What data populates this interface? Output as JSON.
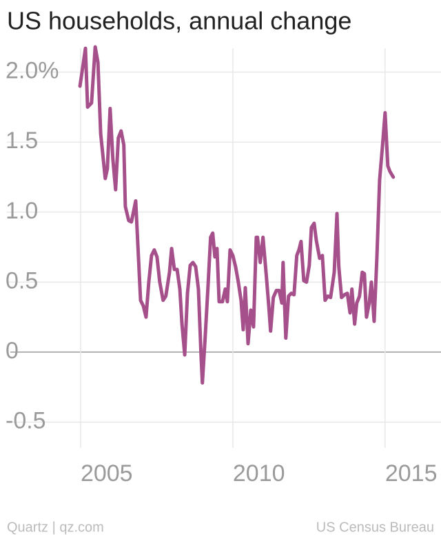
{
  "chart_data": {
    "type": "line",
    "title": "US households, annual change",
    "source": "US Census Bureau",
    "credit": "Quartz | qz.com",
    "xlim": [
      2002.58,
      2016.61
    ],
    "xticks": [
      2005,
      2010,
      2015
    ],
    "ylim": [
      -0.68,
      2.22
    ],
    "yticks": [
      {
        "value": 2.0,
        "label": "2.0%"
      },
      1.5,
      {
        "value": 1.0,
        "label": "1.0"
      },
      0.5,
      0,
      -0.5
    ],
    "grid": true,
    "series": [
      {
        "name": "US households, annual change",
        "color": "#a5508a",
        "x": [
          2004.98,
          2005.16,
          2005.23,
          2005.36,
          2005.48,
          2005.57,
          2005.66,
          2005.81,
          2005.88,
          2005.97,
          2006.06,
          2006.15,
          2006.24,
          2006.33,
          2006.42,
          2006.47,
          2006.58,
          2006.67,
          2006.81,
          2006.97,
          2007.06,
          2007.15,
          2007.24,
          2007.33,
          2007.42,
          2007.51,
          2007.6,
          2007.71,
          2007.8,
          2007.92,
          2007.99,
          2008.08,
          2008.17,
          2008.26,
          2008.33,
          2008.42,
          2008.51,
          2008.6,
          2008.69,
          2008.78,
          2008.87,
          2008.96,
          2009.0,
          2009.09,
          2009.18,
          2009.27,
          2009.34,
          2009.41,
          2009.48,
          2009.55,
          2009.66,
          2009.75,
          2009.82,
          2009.91,
          2010.0,
          2010.09,
          2010.18,
          2010.27,
          2010.34,
          2010.41,
          2010.5,
          2010.59,
          2010.68,
          2010.77,
          2010.81,
          2010.9,
          2010.99,
          2011.09,
          2011.18,
          2011.24,
          2011.33,
          2011.43,
          2011.52,
          2011.61,
          2011.65,
          2011.74,
          2011.83,
          2011.92,
          2012.01,
          2012.1,
          2012.17,
          2012.24,
          2012.33,
          2012.42,
          2012.51,
          2012.58,
          2012.67,
          2012.74,
          2012.85,
          2012.94,
          2013.03,
          2013.12,
          2013.21,
          2013.33,
          2013.42,
          2013.48,
          2013.57,
          2013.67,
          2013.76,
          2013.85,
          2013.91,
          2014.0,
          2014.07,
          2014.16,
          2014.25,
          2014.32,
          2014.39,
          2014.48,
          2014.55,
          2014.64,
          2014.73,
          2014.82,
          2014.91,
          2015.0,
          2015.09,
          2015.16,
          2015.27
        ],
        "values": [
          1.9,
          2.17,
          1.75,
          1.78,
          2.18,
          2.07,
          1.56,
          1.24,
          1.31,
          1.74,
          1.38,
          1.16,
          1.53,
          1.58,
          1.48,
          1.04,
          0.94,
          0.93,
          1.08,
          0.37,
          0.33,
          0.25,
          0.5,
          0.69,
          0.73,
          0.68,
          0.5,
          0.37,
          0.4,
          0.57,
          0.74,
          0.59,
          0.59,
          0.45,
          0.2,
          -0.02,
          0.42,
          0.62,
          0.64,
          0.61,
          0.45,
          -0.04,
          -0.22,
          0.1,
          0.45,
          0.82,
          0.85,
          0.68,
          0.74,
          0.36,
          0.36,
          0.45,
          0.36,
          0.73,
          0.69,
          0.61,
          0.5,
          0.37,
          0.16,
          0.46,
          0.06,
          0.3,
          0.18,
          0.82,
          0.82,
          0.64,
          0.82,
          0.57,
          0.33,
          0.15,
          0.39,
          0.44,
          0.44,
          0.35,
          0.64,
          0.1,
          0.4,
          0.42,
          0.41,
          0.69,
          0.73,
          0.79,
          0.51,
          0.5,
          0.62,
          0.89,
          0.92,
          0.8,
          0.67,
          0.69,
          0.37,
          0.4,
          0.39,
          0.57,
          0.99,
          0.61,
          0.39,
          0.41,
          0.42,
          0.28,
          0.45,
          0.2,
          0.35,
          0.4,
          0.57,
          0.56,
          0.25,
          0.35,
          0.5,
          0.22,
          0.67,
          1.23,
          1.46,
          1.71,
          1.33,
          1.29,
          1.25
        ]
      }
    ]
  }
}
